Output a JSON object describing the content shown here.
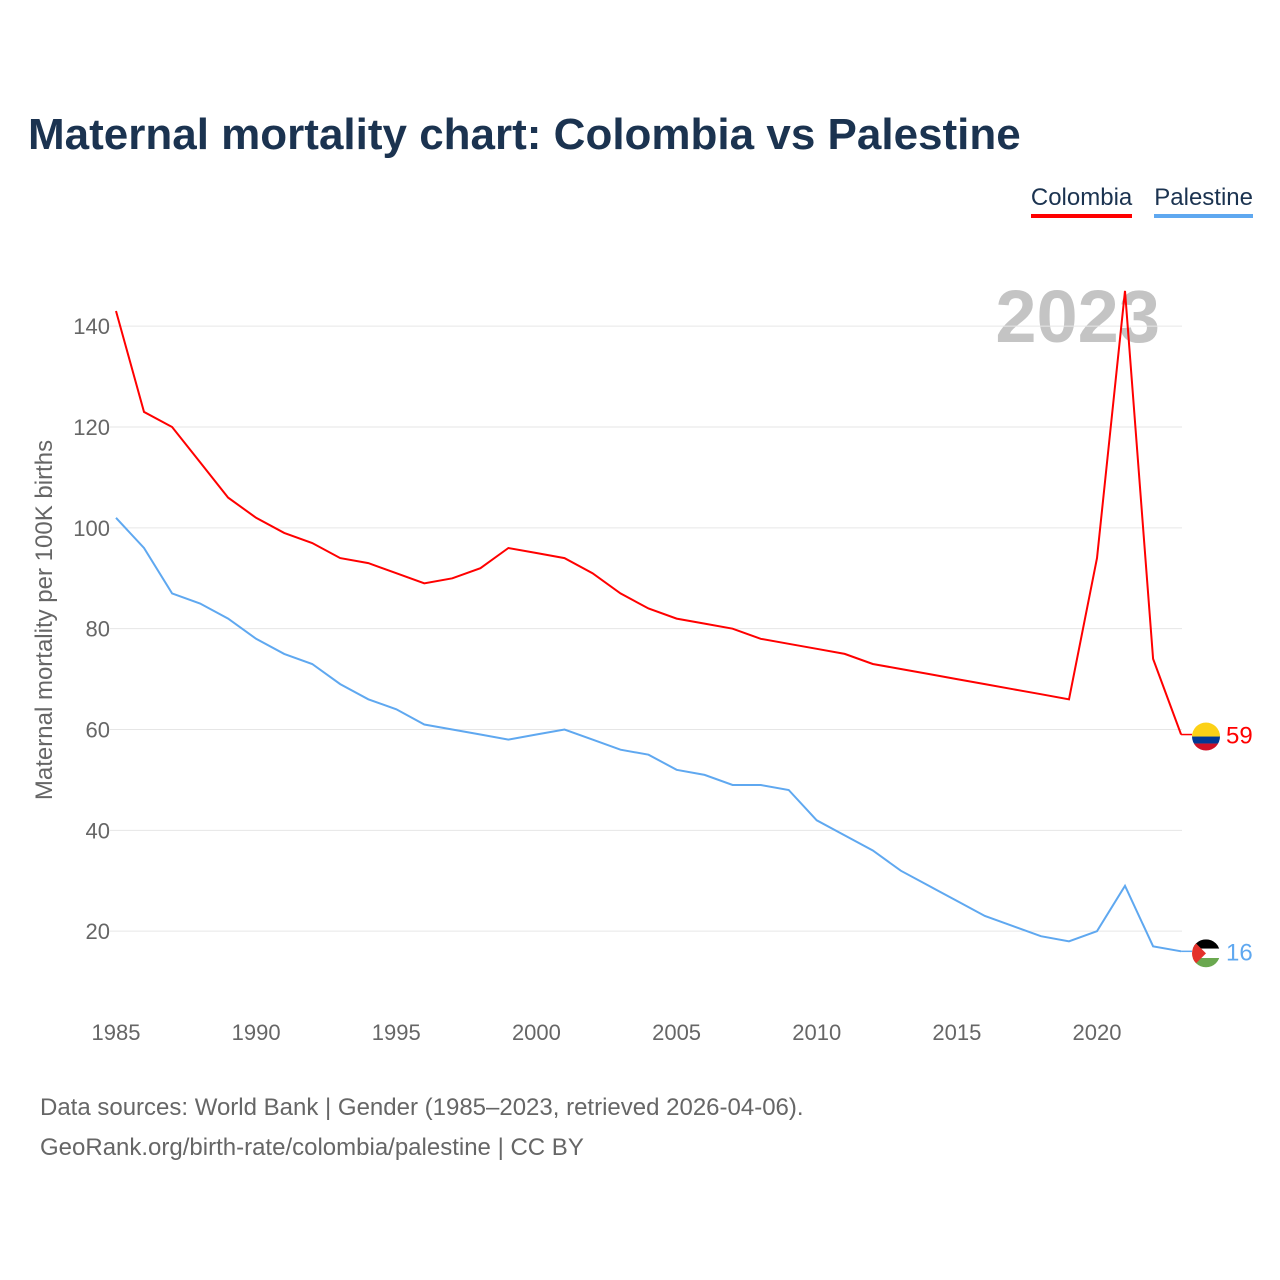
{
  "title": "Maternal mortality chart: Colombia vs Palestine",
  "footer": {
    "line1": "Data sources: World Bank | Gender (1985–2023, retrieved 2026-04-06).",
    "line2": "GeoRank.org/birth-rate/colombia/palestine | CC BY"
  },
  "chart_data": {
    "type": "line",
    "title": "Maternal mortality chart: Colombia vs Palestine",
    "ylabel": "Maternal mortality per 100K births",
    "xlabel": "",
    "year_label": "2023",
    "xlim": [
      1985,
      2023
    ],
    "ylim": [
      10,
      150
    ],
    "xticks": [
      1985,
      1990,
      1995,
      2000,
      2005,
      2010,
      2015,
      2020
    ],
    "yticks": [
      20,
      40,
      60,
      80,
      100,
      120,
      140
    ],
    "legend_position": "top-right",
    "x": [
      1985,
      1986,
      1987,
      1988,
      1989,
      1990,
      1991,
      1992,
      1993,
      1994,
      1995,
      1996,
      1997,
      1998,
      1999,
      2000,
      2001,
      2002,
      2003,
      2004,
      2005,
      2006,
      2007,
      2008,
      2009,
      2010,
      2011,
      2012,
      2013,
      2014,
      2015,
      2016,
      2017,
      2018,
      2019,
      2020,
      2021,
      2022,
      2023
    ],
    "series": [
      {
        "name": "Colombia",
        "color": "#ff0000",
        "end_label": "59",
        "values": [
          143,
          123,
          120,
          113,
          106,
          102,
          99,
          97,
          94,
          93,
          91,
          89,
          90,
          92,
          96,
          95,
          94,
          91,
          87,
          84,
          82,
          81,
          80,
          78,
          77,
          76,
          75,
          73,
          72,
          71,
          70,
          69,
          68,
          67,
          66,
          94,
          147,
          74,
          59
        ]
      },
      {
        "name": "Palestine",
        "color": "#5fa8f0",
        "end_label": "16",
        "values": [
          102,
          96,
          87,
          85,
          82,
          78,
          75,
          73,
          69,
          66,
          64,
          61,
          60,
          59,
          58,
          59,
          60,
          58,
          56,
          55,
          52,
          51,
          49,
          49,
          48,
          42,
          39,
          36,
          32,
          29,
          26,
          23,
          21,
          19,
          18,
          20,
          29,
          17,
          16
        ]
      }
    ]
  }
}
